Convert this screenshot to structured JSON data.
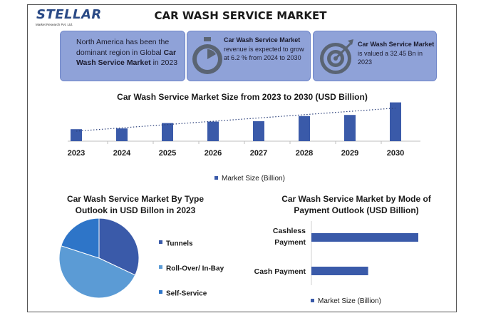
{
  "logo": {
    "name": "STELLAR",
    "tagline": "Market Research Pvt. Ltd."
  },
  "title": "CAR WASH SERVICE MARKET",
  "info_boxes": [
    {
      "pre": "North America has been the dominant region in Global ",
      "bold": "Car Wash Service Market",
      "post": " in 2023"
    },
    {
      "bold": "Car Wash Service Market",
      "post": " revenue is expected to grow at 6.2 % from 2024 to 2030",
      "icon": "stopwatch-icon"
    },
    {
      "bold": "Car Wash Service Market",
      "post": " is valued a 32.45 Bn in 2023",
      "icon": "target-icon"
    }
  ],
  "colors": {
    "bar": "#3a5aa9",
    "box": "#8fa2d8",
    "pie_dark": "#3a5aa9",
    "pie_mid": "#5b9bd5",
    "pie_light": "#2e75c8"
  },
  "chart_data": [
    {
      "type": "bar",
      "title": "Car Wash Service Market Size from 2023 to 2030 (USD Billion)",
      "categories": [
        "2023",
        "2024",
        "2025",
        "2026",
        "2027",
        "2028",
        "2029",
        "2030"
      ],
      "series": [
        {
          "name": "Market Size (Billion)",
          "values": [
            32.45,
            34.5,
            49.0,
            53.0,
            54.0,
            68.0,
            71.0,
            105.0
          ]
        }
      ],
      "trendline": "dotted linear",
      "legend": "bottom"
    },
    {
      "type": "pie",
      "title": "Car Wash Service Market By Type Outlook in USD Billon in 2023",
      "labels": [
        "Tunnels",
        "Roll-Over/ In-Bay",
        "Self-Service"
      ],
      "values": [
        32,
        48,
        20
      ],
      "legend": "right"
    },
    {
      "type": "bar",
      "orientation": "horizontal",
      "title": "Car Wash Service Market by Mode of Payment Outlook (USD Billion)",
      "categories": [
        "Cashless Payment",
        "Cash Payment"
      ],
      "series": [
        {
          "name": "Market Size (Billion)",
          "values": [
            21.2,
            11.25
          ]
        }
      ],
      "legend": "bottom"
    }
  ]
}
